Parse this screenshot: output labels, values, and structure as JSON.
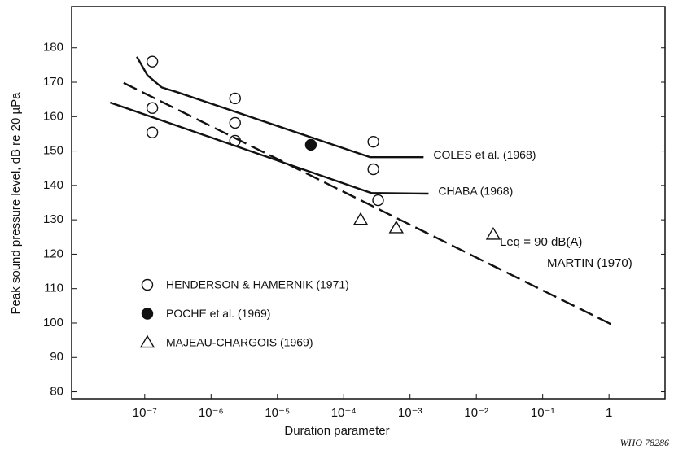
{
  "chart_data": {
    "type": "scatter",
    "xlabel": "Duration parameter",
    "ylabel": "Peak sound pressure level, dB re 20 µPa",
    "xscale": "log",
    "xlim": [
      7.9e-09,
      7.0
    ],
    "xticks": [
      {
        "value": 1e-07,
        "label": "10⁻⁷"
      },
      {
        "value": 1e-06,
        "label": "10⁻⁶"
      },
      {
        "value": 1e-05,
        "label": "10⁻⁵"
      },
      {
        "value": 0.0001,
        "label": "10⁻⁴"
      },
      {
        "value": 0.001,
        "label": "10⁻³"
      },
      {
        "value": 0.01,
        "label": "10⁻²"
      },
      {
        "value": 0.1,
        "label": "10⁻¹"
      },
      1
    ],
    "ylim": [
      78,
      192
    ],
    "yticks": [
      80,
      90,
      100,
      110,
      120,
      130,
      140,
      150,
      160,
      170,
      180
    ],
    "grid": false,
    "series": [
      {
        "name": "HENDERSON & HAMERNIK (1971)",
        "mode": "markers",
        "marker": "circle-open",
        "color": "#111111",
        "x": [
          1.3e-07,
          1.3e-07,
          1.3e-07,
          2.3e-06,
          2.3e-06,
          2.3e-06,
          0.00028,
          0.00028,
          0.00033
        ],
        "values": [
          176,
          162.5,
          155.4,
          165.3,
          158.2,
          153,
          152.7,
          144.7,
          135.7
        ]
      },
      {
        "name": "POCHE et al. (1969)",
        "mode": "markers",
        "marker": "circle-filled",
        "color": "#111111",
        "x": [
          3.2e-05
        ],
        "values": [
          151.8
        ]
      },
      {
        "name": "MAJEAU-CHARGOIS (1969)",
        "mode": "markers",
        "marker": "triangle-open",
        "color": "#111111",
        "x": [
          0.00018,
          0.00062,
          0.018
        ],
        "values": [
          130,
          127.6,
          125.7
        ]
      },
      {
        "name": "COLES et al. (1968)",
        "mode": "line",
        "dash": false,
        "color": "#111111",
        "x": [
          7.6e-08,
          1.1e-07,
          1.8e-07,
          3.2e-07,
          0.00025,
          0.0016
        ],
        "values": [
          177.4,
          172,
          168.5,
          167,
          148.2,
          148.2
        ]
      },
      {
        "name": "CHABA (1968)",
        "mode": "line",
        "dash": false,
        "color": "#111111",
        "x": [
          3e-08,
          0.00026,
          0.0019
        ],
        "values": [
          164.1,
          137.8,
          137.6
        ]
      },
      {
        "name": "MARTIN (1970)",
        "mode": "line",
        "dash": true,
        "color": "#111111",
        "x": [
          4.8e-08,
          1.2
        ],
        "values": [
          169.8,
          99.2
        ]
      }
    ],
    "annotations": [
      "Leq = 90 dB(A)"
    ],
    "footnote": "WHO 78286"
  }
}
